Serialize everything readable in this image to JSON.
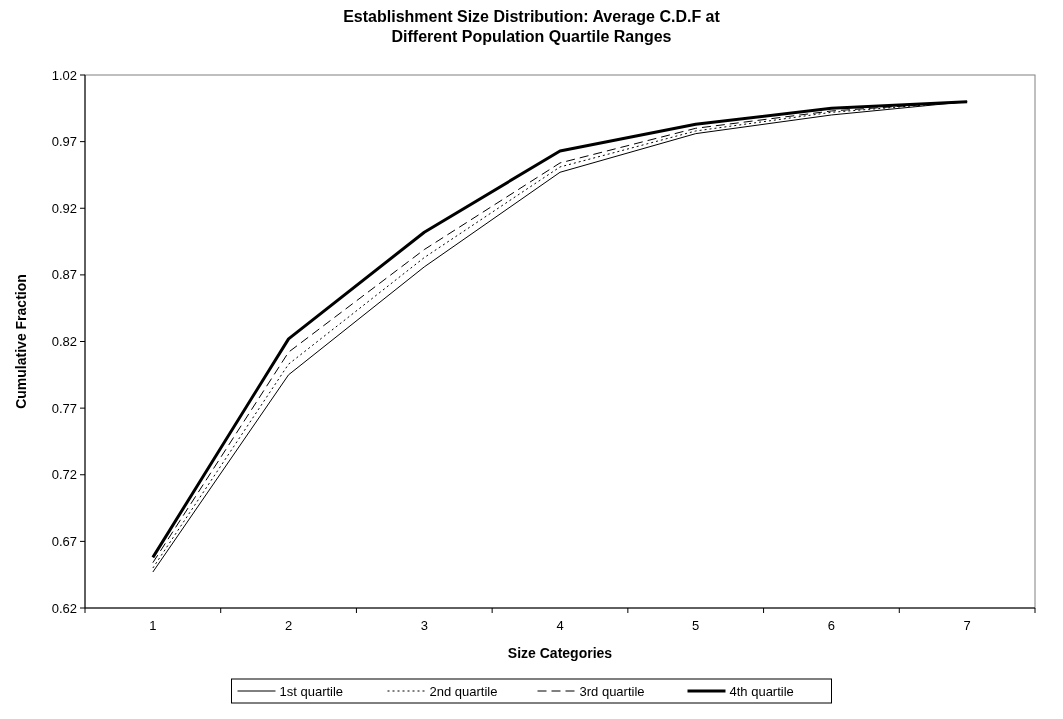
{
  "chart_data": {
    "type": "line",
    "title": "Establishment Size Distribution: Average C.D.F at Different Population Quartile Ranges",
    "xlabel": "Size Categories",
    "ylabel": "Cumulative Fraction",
    "categories": [
      "1",
      "2",
      "3",
      "4",
      "5",
      "6",
      "7"
    ],
    "series": [
      {
        "name": "1st quartile",
        "color": "#000000",
        "line_style": "solid",
        "values": [
          0.647,
          0.795,
          0.876,
          0.947,
          0.976,
          0.99,
          1.0
        ]
      },
      {
        "name": "2nd quartile",
        "color": "#000000",
        "line_style": "dotted",
        "values": [
          0.65,
          0.803,
          0.883,
          0.951,
          0.978,
          0.992,
          1.0
        ]
      },
      {
        "name": "3rd quartile",
        "color": "#000000",
        "line_style": "dashed",
        "values": [
          0.654,
          0.812,
          0.889,
          0.954,
          0.98,
          0.993,
          1.0
        ]
      },
      {
        "name": "4th quartile",
        "color": "#000000",
        "line_style": "solid",
        "values": [
          0.658,
          0.822,
          0.902,
          0.963,
          0.983,
          0.995,
          1.0
        ]
      }
    ],
    "ylim": [
      0.62,
      1.02
    ],
    "yticks": [
      0.62,
      0.67,
      0.72,
      0.77,
      0.82,
      0.87,
      0.92,
      0.97,
      1.02
    ],
    "grid": false,
    "legend": "bottom"
  }
}
